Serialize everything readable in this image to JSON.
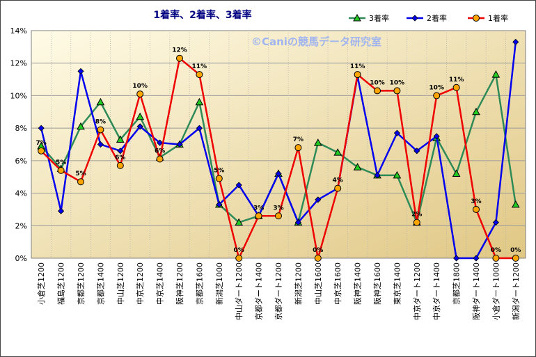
{
  "chart_data": {
    "type": "line",
    "title": "1着率、2着率、3着率",
    "watermark": "©Caniの競馬データ研究室",
    "ylim": [
      0,
      14
    ],
    "yticks": [
      "0%",
      "2%",
      "4%",
      "6%",
      "8%",
      "10%",
      "12%",
      "14%"
    ],
    "grid": true,
    "legend": "top-right",
    "categories": [
      "小倉芝1200",
      "福島芝1200",
      "京都芝1200",
      "京都芝1400",
      "中山芝1200",
      "中京芝1200",
      "中京芝1400",
      "阪神芝1200",
      "京都芝1600",
      "新潟芝1000",
      "中山ダート1200",
      "京都ダート1400",
      "京都ダート1200",
      "新潟芝1200",
      "中山芝1600",
      "中京芝1600",
      "阪神芝1400",
      "阪神芝1600",
      "東京芝1400",
      "中京ダート1200",
      "中京ダート1400",
      "京都芝1800",
      "阪神ダート1400",
      "小倉ダート1000",
      "新潟ダート1200"
    ],
    "series": [
      {
        "name": "3着率",
        "color": "#2e8b57",
        "marker": "triangle",
        "marker_color": "#22cc22",
        "values": [
          6.9,
          5.5,
          8.1,
          9.6,
          7.3,
          8.7,
          6.2,
          7.0,
          9.6,
          3.3,
          2.2,
          2.6,
          5.2,
          2.2,
          7.1,
          6.5,
          5.6,
          5.1,
          5.1,
          2.2,
          7.4,
          5.2,
          9.0,
          11.3,
          3.3
        ]
      },
      {
        "name": "2着率",
        "color": "#0000ee",
        "marker": "diamond",
        "marker_color": "#0000ee",
        "values": [
          8.0,
          2.9,
          11.5,
          7.0,
          6.6,
          8.1,
          7.1,
          7.0,
          8.0,
          3.3,
          4.5,
          2.6,
          5.2,
          2.2,
          3.6,
          4.3,
          11.2,
          5.1,
          7.7,
          6.6,
          7.5,
          0.0,
          0.0,
          2.2,
          13.3
        ]
      },
      {
        "name": "1着率",
        "color": "#ee0000",
        "marker": "circle",
        "marker_color": "#ffa500",
        "values": [
          6.6,
          5.4,
          4.7,
          7.9,
          5.7,
          10.1,
          6.1,
          12.3,
          11.3,
          4.9,
          0.0,
          2.6,
          2.6,
          6.8,
          0.0,
          4.3,
          11.3,
          10.3,
          10.3,
          2.2,
          10.0,
          10.5,
          3.0,
          0.0,
          0.0
        ],
        "data_labels": [
          "7%",
          "5%",
          "5%",
          "8%",
          "6%",
          "10%",
          "6%",
          "12%",
          "11%",
          "5%",
          "0%",
          "3%",
          "3%",
          "7%",
          "0%",
          "4%",
          "11%",
          "10%",
          "10%",
          "2%",
          "10%",
          "11%",
          "3%",
          "0%",
          "0%"
        ]
      }
    ]
  }
}
